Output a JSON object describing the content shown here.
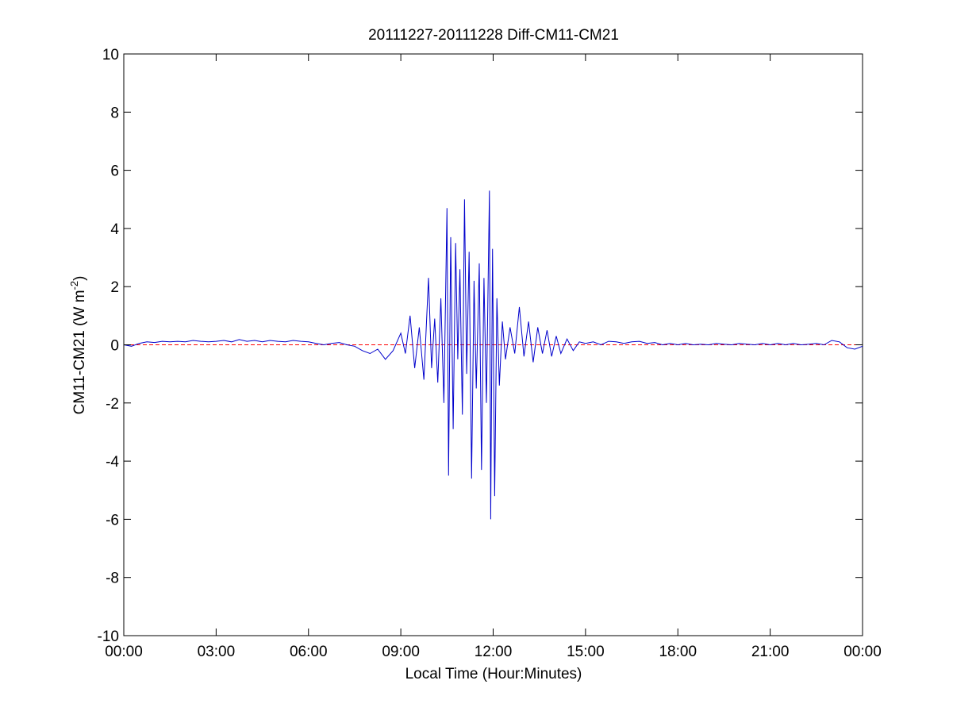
{
  "chart_data": {
    "type": "line",
    "title": "20111227-20111228 Diff-CM11-CM21",
    "xlabel": "Local Time (Hour:Minutes)",
    "ylabel": {
      "prefix": "CM11-CM21 (W m",
      "superscript": "-2",
      "suffix": ")"
    },
    "xlim_hours": [
      0,
      24
    ],
    "ylim": [
      -10,
      10
    ],
    "x_ticks": [
      {
        "hour": 0,
        "label": "00:00"
      },
      {
        "hour": 3,
        "label": "03:00"
      },
      {
        "hour": 6,
        "label": "06:00"
      },
      {
        "hour": 9,
        "label": "09:00"
      },
      {
        "hour": 12,
        "label": "12:00"
      },
      {
        "hour": 15,
        "label": "15:00"
      },
      {
        "hour": 18,
        "label": "18:00"
      },
      {
        "hour": 21,
        "label": "21:00"
      },
      {
        "hour": 24,
        "label": "00:00"
      }
    ],
    "y_ticks": [
      -10,
      -8,
      -6,
      -4,
      -2,
      0,
      2,
      4,
      6,
      8,
      10
    ],
    "grid": false,
    "reference_line": {
      "y": 0,
      "color": "#ff0000",
      "style": "dashed"
    },
    "series": [
      {
        "color": "#0000cc",
        "points": [
          [
            0.0,
            0.0
          ],
          [
            0.25,
            -0.05
          ],
          [
            0.5,
            0.05
          ],
          [
            0.75,
            0.1
          ],
          [
            1.0,
            0.08
          ],
          [
            1.25,
            0.12
          ],
          [
            1.5,
            0.1
          ],
          [
            1.75,
            0.12
          ],
          [
            2.0,
            0.1
          ],
          [
            2.25,
            0.15
          ],
          [
            2.5,
            0.12
          ],
          [
            2.75,
            0.1
          ],
          [
            3.0,
            0.12
          ],
          [
            3.25,
            0.15
          ],
          [
            3.5,
            0.1
          ],
          [
            3.75,
            0.18
          ],
          [
            4.0,
            0.12
          ],
          [
            4.25,
            0.15
          ],
          [
            4.5,
            0.1
          ],
          [
            4.75,
            0.15
          ],
          [
            5.0,
            0.12
          ],
          [
            5.25,
            0.1
          ],
          [
            5.5,
            0.15
          ],
          [
            5.75,
            0.12
          ],
          [
            6.0,
            0.1
          ],
          [
            6.25,
            0.05
          ],
          [
            6.5,
            0.0
          ],
          [
            6.75,
            0.05
          ],
          [
            7.0,
            0.08
          ],
          [
            7.25,
            0.0
          ],
          [
            7.5,
            -0.05
          ],
          [
            7.75,
            -0.2
          ],
          [
            8.0,
            -0.3
          ],
          [
            8.25,
            -0.15
          ],
          [
            8.5,
            -0.5
          ],
          [
            8.75,
            -0.2
          ],
          [
            9.0,
            0.4
          ],
          [
            9.15,
            -0.3
          ],
          [
            9.3,
            1.0
          ],
          [
            9.45,
            -0.8
          ],
          [
            9.6,
            0.6
          ],
          [
            9.75,
            -1.2
          ],
          [
            9.9,
            2.3
          ],
          [
            10.0,
            -0.8
          ],
          [
            10.1,
            0.9
          ],
          [
            10.2,
            -1.3
          ],
          [
            10.3,
            1.6
          ],
          [
            10.4,
            -2.0
          ],
          [
            10.5,
            4.7
          ],
          [
            10.55,
            -4.5
          ],
          [
            10.62,
            3.7
          ],
          [
            10.7,
            -2.9
          ],
          [
            10.78,
            3.5
          ],
          [
            10.85,
            -0.5
          ],
          [
            10.92,
            2.6
          ],
          [
            11.0,
            -2.4
          ],
          [
            11.07,
            5.0
          ],
          [
            11.14,
            -1.0
          ],
          [
            11.22,
            3.2
          ],
          [
            11.3,
            -4.6
          ],
          [
            11.38,
            2.2
          ],
          [
            11.45,
            -1.5
          ],
          [
            11.55,
            2.8
          ],
          [
            11.62,
            -4.3
          ],
          [
            11.7,
            2.3
          ],
          [
            11.78,
            -2.0
          ],
          [
            11.88,
            5.3
          ],
          [
            11.92,
            -6.0
          ],
          [
            11.98,
            3.3
          ],
          [
            12.05,
            -5.2
          ],
          [
            12.12,
            1.6
          ],
          [
            12.2,
            -1.4
          ],
          [
            12.3,
            0.8
          ],
          [
            12.4,
            -0.5
          ],
          [
            12.55,
            0.6
          ],
          [
            12.7,
            -0.3
          ],
          [
            12.85,
            1.3
          ],
          [
            13.0,
            -0.4
          ],
          [
            13.15,
            0.8
          ],
          [
            13.3,
            -0.6
          ],
          [
            13.45,
            0.6
          ],
          [
            13.6,
            -0.3
          ],
          [
            13.75,
            0.5
          ],
          [
            13.9,
            -0.4
          ],
          [
            14.05,
            0.3
          ],
          [
            14.2,
            -0.3
          ],
          [
            14.4,
            0.2
          ],
          [
            14.6,
            -0.2
          ],
          [
            14.8,
            0.1
          ],
          [
            15.0,
            0.05
          ],
          [
            15.25,
            0.1
          ],
          [
            15.5,
            0.0
          ],
          [
            15.75,
            0.12
          ],
          [
            16.0,
            0.1
          ],
          [
            16.25,
            0.05
          ],
          [
            16.5,
            0.1
          ],
          [
            16.75,
            0.12
          ],
          [
            17.0,
            0.05
          ],
          [
            17.25,
            0.08
          ],
          [
            17.5,
            0.0
          ],
          [
            17.75,
            0.05
          ],
          [
            18.0,
            0.0
          ],
          [
            18.25,
            0.05
          ],
          [
            18.5,
            0.0
          ],
          [
            18.75,
            0.02
          ],
          [
            19.0,
            0.0
          ],
          [
            19.25,
            0.05
          ],
          [
            19.5,
            0.02
          ],
          [
            19.75,
            0.0
          ],
          [
            20.0,
            0.05
          ],
          [
            20.25,
            0.02
          ],
          [
            20.5,
            0.0
          ],
          [
            20.75,
            0.05
          ],
          [
            21.0,
            0.0
          ],
          [
            21.25,
            0.05
          ],
          [
            21.5,
            0.0
          ],
          [
            21.75,
            0.05
          ],
          [
            22.0,
            0.0
          ],
          [
            22.25,
            0.02
          ],
          [
            22.5,
            0.05
          ],
          [
            22.75,
            0.0
          ],
          [
            23.0,
            0.15
          ],
          [
            23.25,
            0.1
          ],
          [
            23.5,
            -0.1
          ],
          [
            23.75,
            -0.15
          ],
          [
            24.0,
            -0.05
          ]
        ]
      }
    ]
  }
}
